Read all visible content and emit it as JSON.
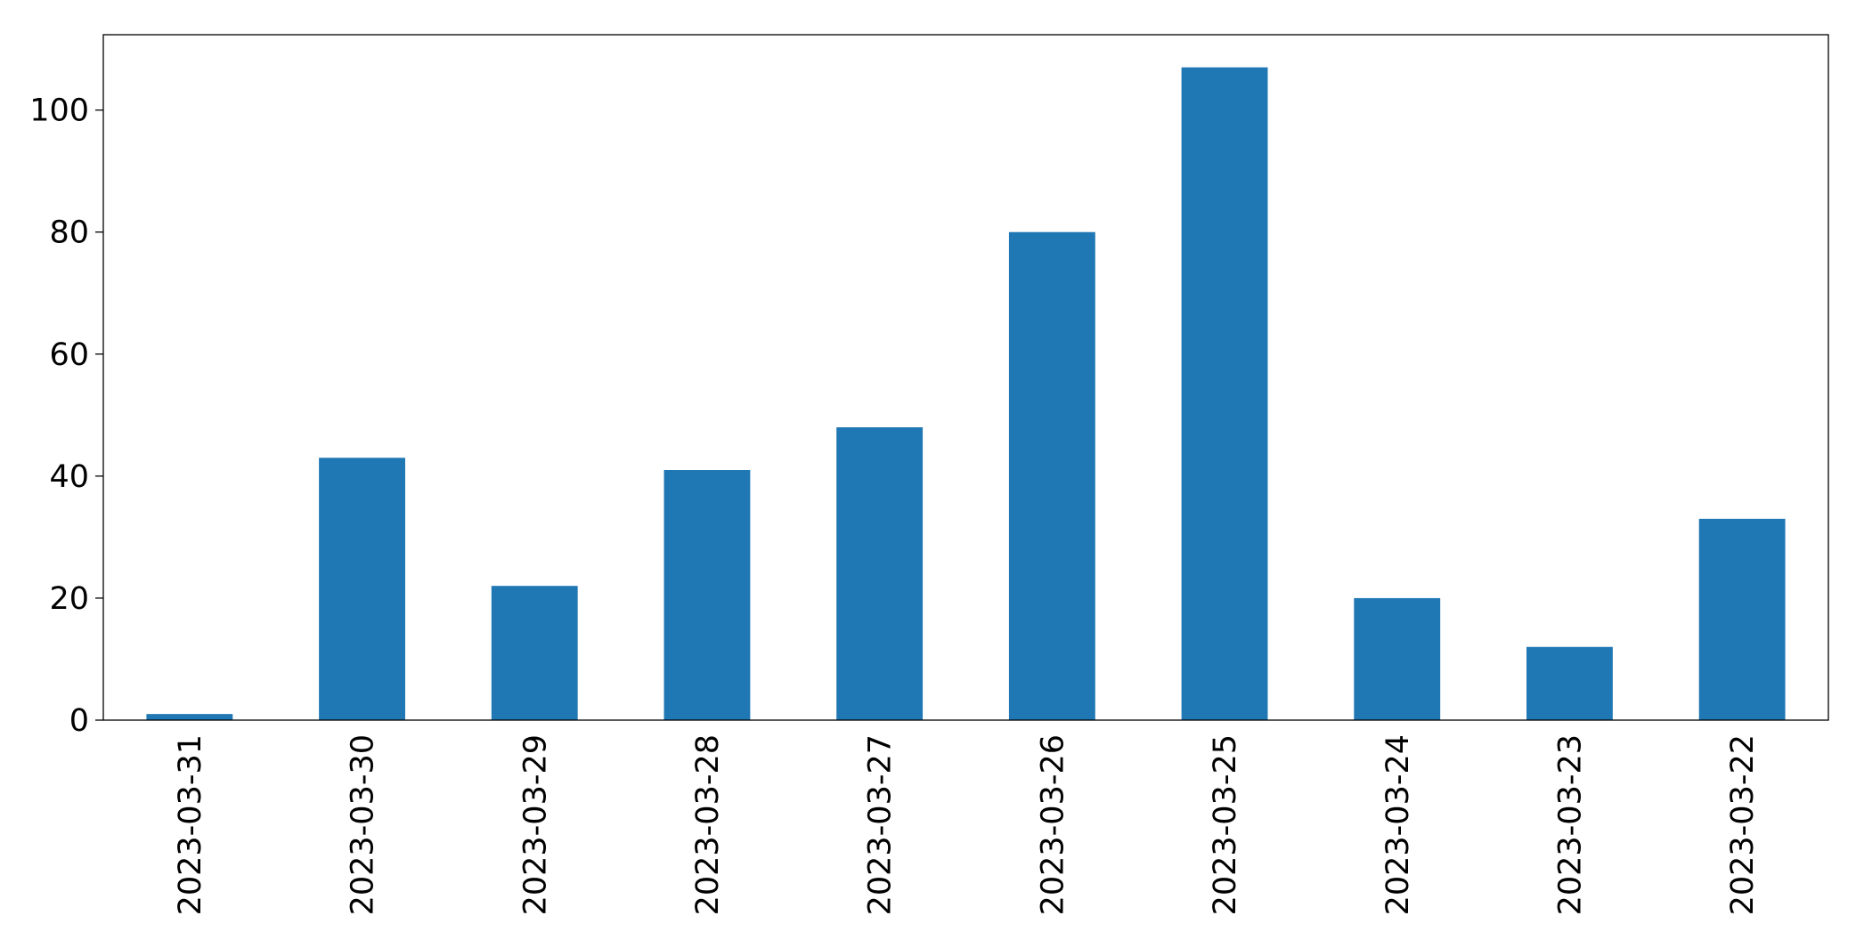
{
  "chart_data": {
    "type": "bar",
    "categories": [
      "2023-03-31",
      "2023-03-30",
      "2023-03-29",
      "2023-03-28",
      "2023-03-27",
      "2023-03-26",
      "2023-03-25",
      "2023-03-24",
      "2023-03-23",
      "2023-03-22"
    ],
    "values": [
      1,
      43,
      22,
      41,
      48,
      80,
      107,
      20,
      12,
      33
    ],
    "color": "#1f77b4",
    "ylim": [
      0,
      112.35
    ],
    "yticks": [
      0,
      20,
      40,
      60,
      80,
      100
    ],
    "grid": false
  }
}
